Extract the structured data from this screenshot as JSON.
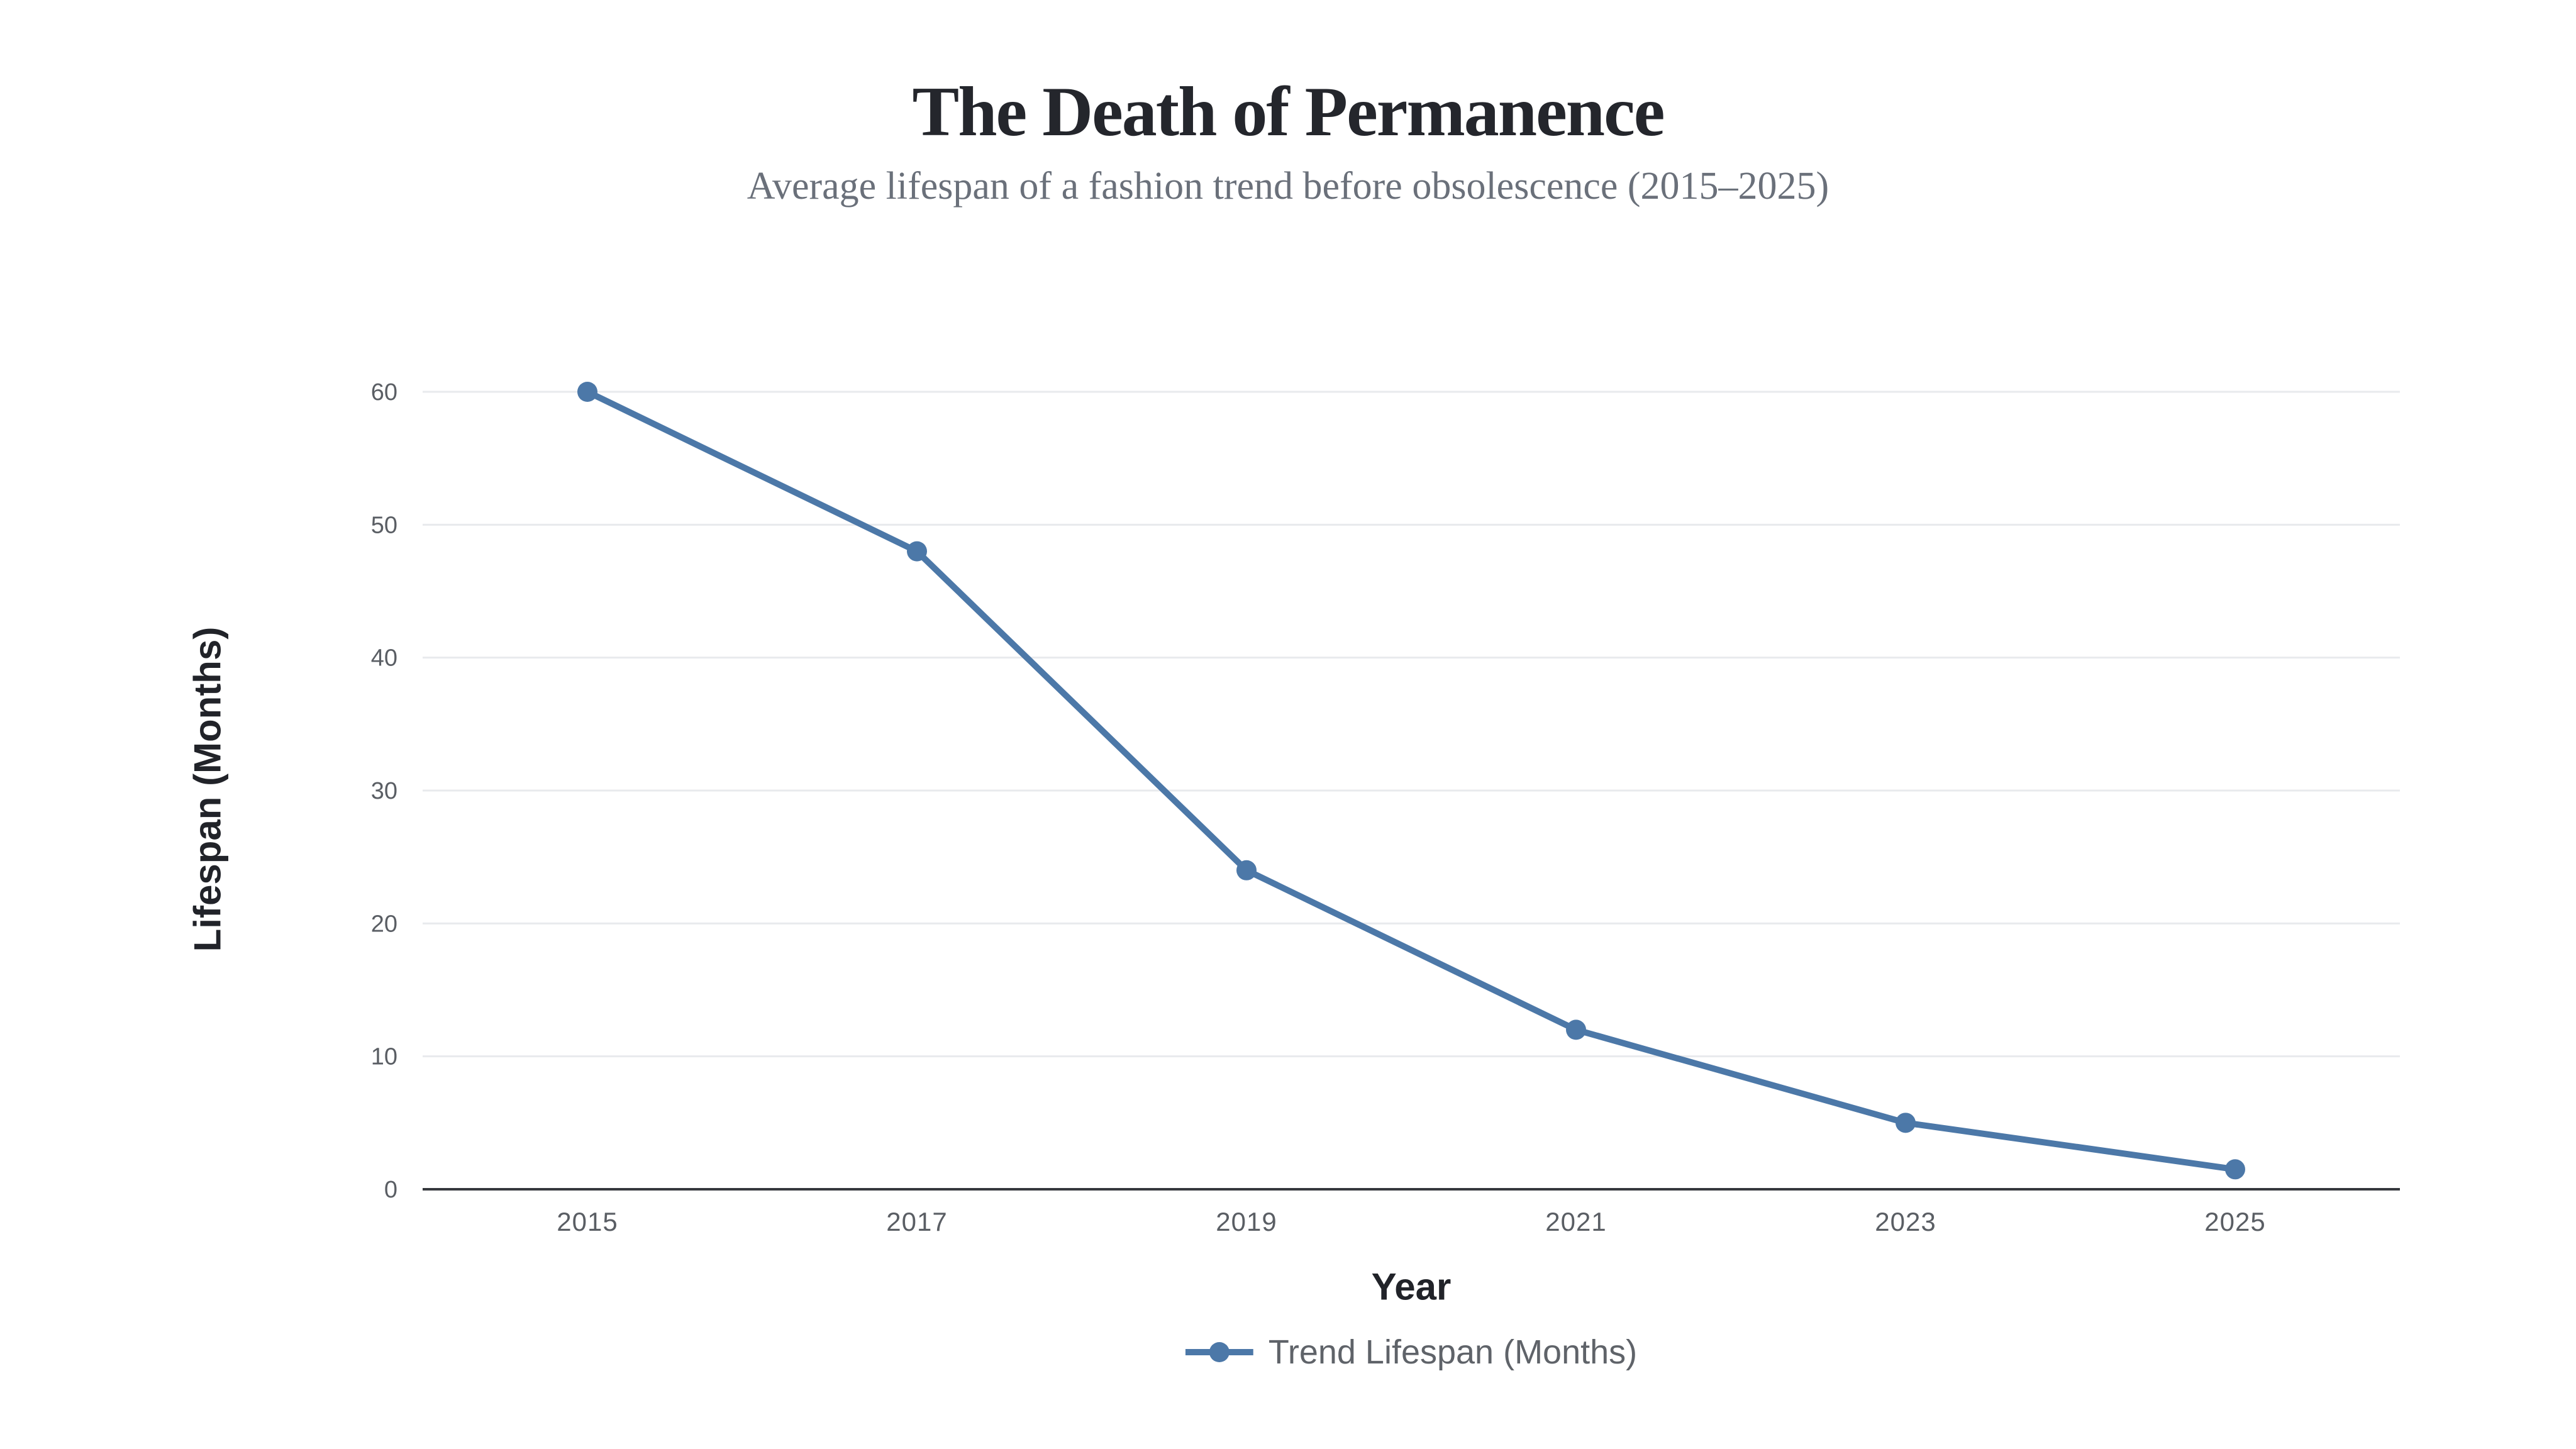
{
  "page": {
    "background": "#ffffff"
  },
  "chart_data": {
    "type": "line",
    "title": "The Death of Permanence",
    "subtitle": "Average lifespan of a fashion trend before obsolescence (2015–2025)",
    "xlabel": "Year",
    "ylabel": "Lifespan (Months)",
    "categories": [
      "2015",
      "2017",
      "2019",
      "2021",
      "2023",
      "2025"
    ],
    "series": [
      {
        "name": "Trend Lifespan (Months)",
        "values": [
          60,
          48,
          24,
          12,
          5,
          1.5
        ]
      }
    ],
    "ylim": [
      0,
      60
    ],
    "yticks": [
      0,
      10,
      20,
      30,
      40,
      50,
      60
    ],
    "grid": "horizontal-only",
    "legend_position": "bottom-center",
    "marker": "circle",
    "colors": {
      "line": "#4c78a8",
      "grid": "#e8eaed",
      "axis": "#35383d",
      "title_text": "#24262c",
      "subtitle_text": "#6a707a",
      "tick_text": "#5a5e64",
      "axis_title_text": "#212329",
      "legend_text": "#5f6369"
    }
  }
}
